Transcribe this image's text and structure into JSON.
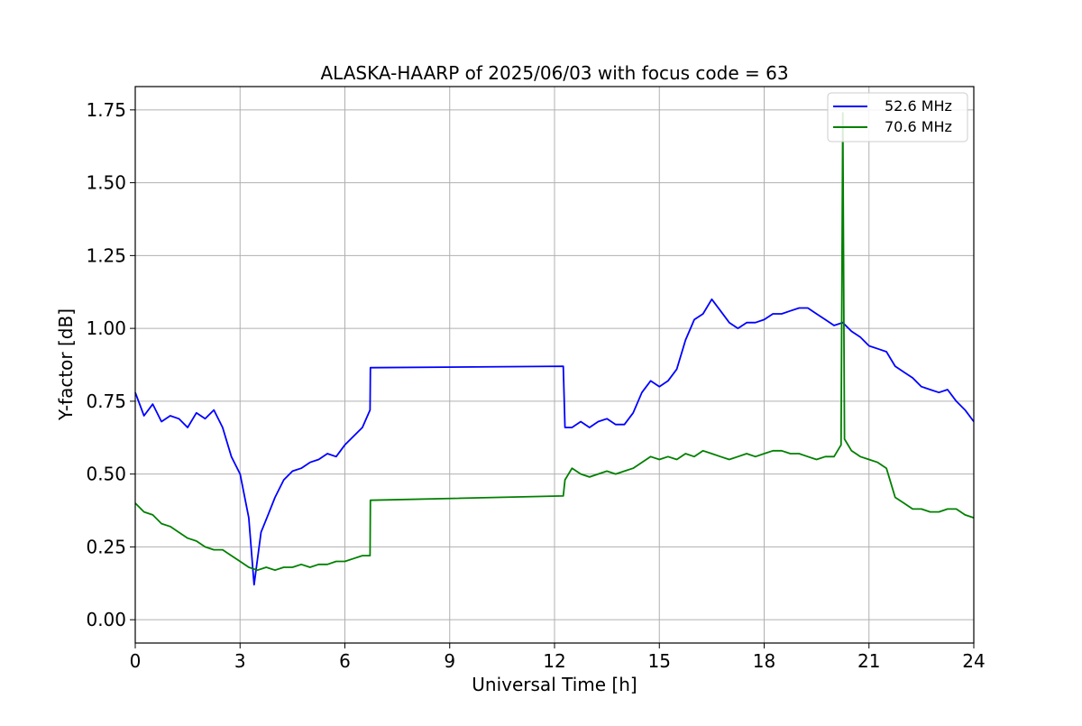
{
  "chart_data": {
    "type": "line",
    "title": "ALASKA-HAARP of 2025/06/03 with focus code = 63",
    "xlabel": "Universal Time [h]",
    "ylabel": "Y-factor [dB]",
    "xlim": [
      0,
      24
    ],
    "ylim": [
      -0.08,
      1.83
    ],
    "x_ticks": [
      0,
      3,
      6,
      9,
      12,
      15,
      18,
      21,
      24
    ],
    "x_tick_labels": [
      "0",
      "3",
      "6",
      "9",
      "12",
      "15",
      "18",
      "21",
      "24"
    ],
    "y_ticks": [
      0.0,
      0.25,
      0.5,
      0.75,
      1.0,
      1.25,
      1.5,
      1.75
    ],
    "y_tick_labels": [
      "0.00",
      "0.25",
      "0.50",
      "0.75",
      "1.00",
      "1.25",
      "1.50",
      "1.75"
    ],
    "grid": true,
    "legend_position": "top-right",
    "series": [
      {
        "name": "52.6 MHz",
        "color": "#0000ff",
        "points": [
          [
            0.0,
            0.78
          ],
          [
            0.25,
            0.7
          ],
          [
            0.5,
            0.74
          ],
          [
            0.75,
            0.68
          ],
          [
            1.0,
            0.7
          ],
          [
            1.25,
            0.69
          ],
          [
            1.5,
            0.66
          ],
          [
            1.75,
            0.71
          ],
          [
            2.0,
            0.69
          ],
          [
            2.25,
            0.72
          ],
          [
            2.5,
            0.66
          ],
          [
            2.75,
            0.56
          ],
          [
            3.0,
            0.5
          ],
          [
            3.25,
            0.35
          ],
          [
            3.4,
            0.12
          ],
          [
            3.6,
            0.3
          ],
          [
            3.8,
            0.36
          ],
          [
            4.0,
            0.42
          ],
          [
            4.25,
            0.48
          ],
          [
            4.5,
            0.51
          ],
          [
            4.75,
            0.52
          ],
          [
            5.0,
            0.54
          ],
          [
            5.25,
            0.55
          ],
          [
            5.5,
            0.57
          ],
          [
            5.75,
            0.56
          ],
          [
            6.0,
            0.6
          ],
          [
            6.25,
            0.63
          ],
          [
            6.5,
            0.66
          ],
          [
            6.72,
            0.72
          ],
          [
            6.73,
            0.865
          ],
          [
            12.25,
            0.87
          ],
          [
            12.3,
            0.66
          ],
          [
            12.5,
            0.66
          ],
          [
            12.75,
            0.68
          ],
          [
            13.0,
            0.66
          ],
          [
            13.25,
            0.68
          ],
          [
            13.5,
            0.69
          ],
          [
            13.75,
            0.67
          ],
          [
            14.0,
            0.67
          ],
          [
            14.25,
            0.71
          ],
          [
            14.5,
            0.78
          ],
          [
            14.75,
            0.82
          ],
          [
            15.0,
            0.8
          ],
          [
            15.25,
            0.82
          ],
          [
            15.5,
            0.86
          ],
          [
            15.75,
            0.96
          ],
          [
            16.0,
            1.03
          ],
          [
            16.25,
            1.05
          ],
          [
            16.5,
            1.1
          ],
          [
            16.75,
            1.06
          ],
          [
            17.0,
            1.02
          ],
          [
            17.25,
            1.0
          ],
          [
            17.5,
            1.02
          ],
          [
            17.75,
            1.02
          ],
          [
            18.0,
            1.03
          ],
          [
            18.25,
            1.05
          ],
          [
            18.5,
            1.05
          ],
          [
            18.75,
            1.06
          ],
          [
            19.0,
            1.07
          ],
          [
            19.25,
            1.07
          ],
          [
            19.5,
            1.05
          ],
          [
            19.75,
            1.03
          ],
          [
            20.0,
            1.01
          ],
          [
            20.25,
            1.02
          ],
          [
            20.5,
            0.99
          ],
          [
            20.75,
            0.97
          ],
          [
            21.0,
            0.94
          ],
          [
            21.25,
            0.93
          ],
          [
            21.5,
            0.92
          ],
          [
            21.75,
            0.87
          ],
          [
            22.0,
            0.85
          ],
          [
            22.25,
            0.83
          ],
          [
            22.5,
            0.8
          ],
          [
            22.75,
            0.79
          ],
          [
            23.0,
            0.78
          ],
          [
            23.25,
            0.79
          ],
          [
            23.5,
            0.75
          ],
          [
            23.75,
            0.72
          ],
          [
            24.0,
            0.68
          ]
        ]
      },
      {
        "name": "70.6 MHz",
        "color": "#008000",
        "points": [
          [
            0.0,
            0.4
          ],
          [
            0.25,
            0.37
          ],
          [
            0.5,
            0.36
          ],
          [
            0.75,
            0.33
          ],
          [
            1.0,
            0.32
          ],
          [
            1.25,
            0.3
          ],
          [
            1.5,
            0.28
          ],
          [
            1.75,
            0.27
          ],
          [
            2.0,
            0.25
          ],
          [
            2.25,
            0.24
          ],
          [
            2.5,
            0.24
          ],
          [
            2.75,
            0.22
          ],
          [
            3.0,
            0.2
          ],
          [
            3.25,
            0.18
          ],
          [
            3.5,
            0.17
          ],
          [
            3.75,
            0.18
          ],
          [
            4.0,
            0.17
          ],
          [
            4.25,
            0.18
          ],
          [
            4.5,
            0.18
          ],
          [
            4.75,
            0.19
          ],
          [
            5.0,
            0.18
          ],
          [
            5.25,
            0.19
          ],
          [
            5.5,
            0.19
          ],
          [
            5.75,
            0.2
          ],
          [
            6.0,
            0.2
          ],
          [
            6.25,
            0.21
          ],
          [
            6.5,
            0.22
          ],
          [
            6.72,
            0.22
          ],
          [
            6.73,
            0.41
          ],
          [
            12.25,
            0.425
          ],
          [
            12.3,
            0.48
          ],
          [
            12.5,
            0.52
          ],
          [
            12.75,
            0.5
          ],
          [
            13.0,
            0.49
          ],
          [
            13.25,
            0.5
          ],
          [
            13.5,
            0.51
          ],
          [
            13.75,
            0.5
          ],
          [
            14.0,
            0.51
          ],
          [
            14.25,
            0.52
          ],
          [
            14.5,
            0.54
          ],
          [
            14.75,
            0.56
          ],
          [
            15.0,
            0.55
          ],
          [
            15.25,
            0.56
          ],
          [
            15.5,
            0.55
          ],
          [
            15.75,
            0.57
          ],
          [
            16.0,
            0.56
          ],
          [
            16.25,
            0.58
          ],
          [
            16.5,
            0.57
          ],
          [
            16.75,
            0.56
          ],
          [
            17.0,
            0.55
          ],
          [
            17.25,
            0.56
          ],
          [
            17.5,
            0.57
          ],
          [
            17.75,
            0.56
          ],
          [
            18.0,
            0.57
          ],
          [
            18.25,
            0.58
          ],
          [
            18.5,
            0.58
          ],
          [
            18.75,
            0.57
          ],
          [
            19.0,
            0.57
          ],
          [
            19.25,
            0.56
          ],
          [
            19.5,
            0.55
          ],
          [
            19.75,
            0.56
          ],
          [
            20.0,
            0.56
          ],
          [
            20.2,
            0.6
          ],
          [
            20.25,
            1.74
          ],
          [
            20.3,
            0.62
          ],
          [
            20.5,
            0.58
          ],
          [
            20.75,
            0.56
          ],
          [
            21.0,
            0.55
          ],
          [
            21.25,
            0.54
          ],
          [
            21.5,
            0.52
          ],
          [
            21.75,
            0.42
          ],
          [
            22.0,
            0.4
          ],
          [
            22.25,
            0.38
          ],
          [
            22.5,
            0.38
          ],
          [
            22.75,
            0.37
          ],
          [
            23.0,
            0.37
          ],
          [
            23.25,
            0.38
          ],
          [
            23.5,
            0.38
          ],
          [
            23.75,
            0.36
          ],
          [
            24.0,
            0.35
          ]
        ]
      }
    ]
  }
}
